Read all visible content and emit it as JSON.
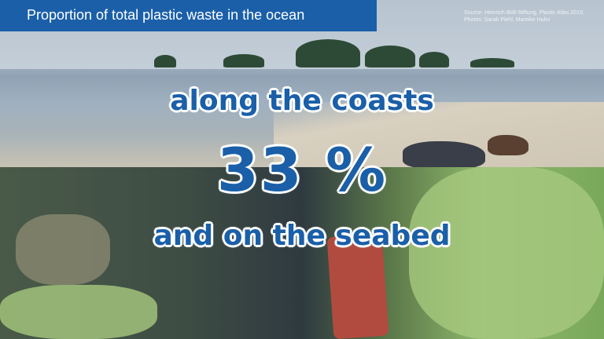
{
  "header": {
    "title": "Proportion of total plastic waste in the ocean"
  },
  "source": {
    "line1": "Source: Heinrich-Böll-Stiftung, Plastic Atlas 2019,",
    "line2": "Photos: Sarah Piehl, Mareike Huhn"
  },
  "headline": {
    "line1": "along the coasts",
    "value": "33 %",
    "line3": "and on the seabed"
  },
  "colors": {
    "brand": "#1a5fa8",
    "text_outline": "#ffffff"
  }
}
